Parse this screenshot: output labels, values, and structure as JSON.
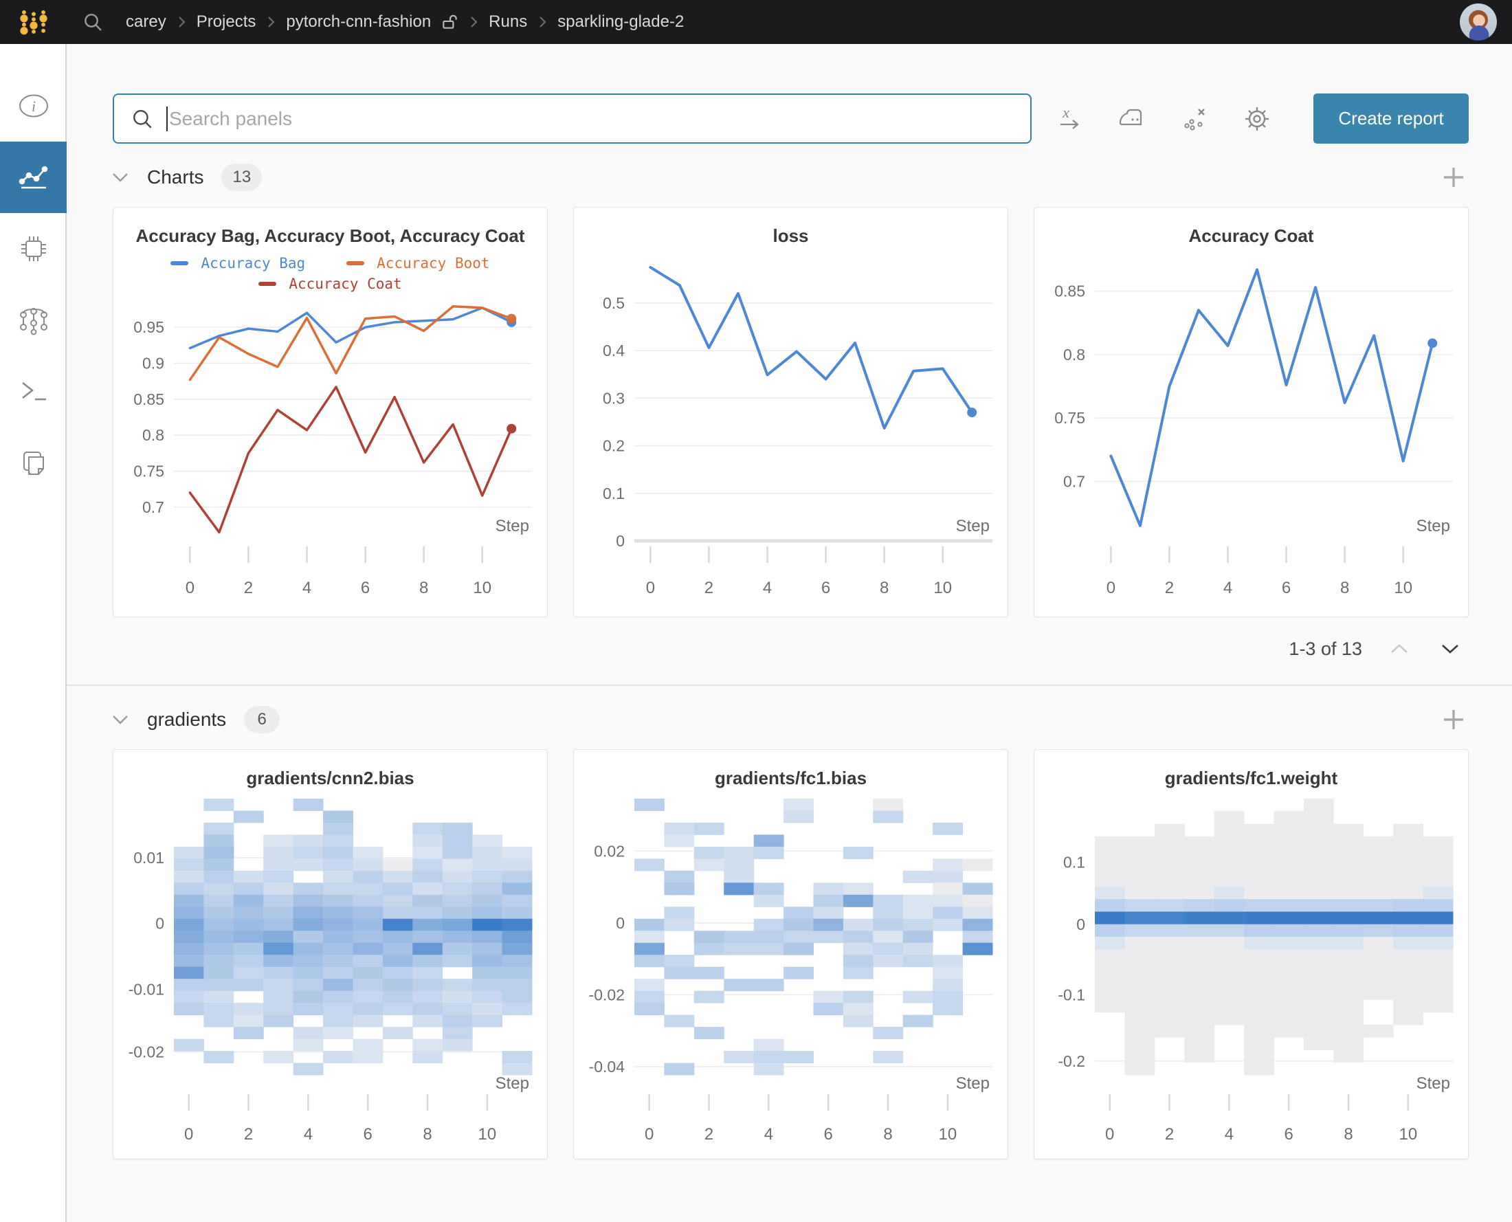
{
  "topbar": {
    "breadcrumb": [
      "carey",
      "Projects",
      "pytorch-cnn-fashion",
      "Runs",
      "sparkling-glade-2"
    ]
  },
  "search": {
    "placeholder": "Search panels"
  },
  "actions": {
    "create_report": "Create report"
  },
  "sections": {
    "charts": {
      "label": "Charts",
      "count": "13"
    },
    "gradients": {
      "label": "gradients",
      "count": "6"
    }
  },
  "pagination": {
    "label": "1-3 of 13"
  },
  "palette": {
    "blue": "#4f87d7",
    "orange": "#d9703a",
    "red": "#ad4239",
    "active_nav": "#3578a8",
    "button": "#3a85ad",
    "logo_gold": "#f5b83d"
  },
  "chart_data": [
    {
      "kind": "line",
      "type": "line",
      "title": "Accuracy Bag, Accuracy Boot, Accuracy Coat",
      "x_label": "Step",
      "x_ticks": [
        0,
        2,
        4,
        6,
        8,
        10
      ],
      "x_domain": [
        -0.55,
        11.7
      ],
      "y_domain": [
        0.653,
        0.9855
      ],
      "y_ticks": [
        {
          "v": 0.95,
          "l": "0.95"
        },
        {
          "v": 0.9,
          "l": "0.9"
        },
        {
          "v": 0.85,
          "l": "0.85"
        },
        {
          "v": 0.8,
          "l": "0.8"
        },
        {
          "v": 0.75,
          "l": "0.75"
        },
        {
          "v": 0.7,
          "l": "0.7"
        }
      ],
      "legend_rows": [
        [
          0,
          1
        ],
        [
          2
        ]
      ],
      "series": [
        {
          "name": "Accuracy Bag",
          "color": "#4f87d7",
          "width": 3.5,
          "end_dot": true,
          "values": [
            0.921,
            0.938,
            0.948,
            0.944,
            0.97,
            0.929,
            0.95,
            0.957,
            0.959,
            0.961,
            0.977,
            0.957
          ]
        },
        {
          "name": "Accuracy Boot",
          "color": "#d9703a",
          "width": 3.5,
          "end_dot": true,
          "values": [
            0.877,
            0.936,
            0.913,
            0.895,
            0.963,
            0.886,
            0.962,
            0.965,
            0.945,
            0.979,
            0.977,
            0.962
          ]
        },
        {
          "name": "Accuracy Coat",
          "color": "#ad4239",
          "width": 3.5,
          "end_dot": true,
          "values": [
            0.72,
            0.665,
            0.775,
            0.835,
            0.807,
            0.867,
            0.776,
            0.853,
            0.762,
            0.815,
            0.716,
            0.809
          ]
        }
      ]
    },
    {
      "kind": "line",
      "type": "line",
      "title": "loss",
      "x_label": "Step",
      "x_ticks": [
        0,
        2,
        4,
        6,
        8,
        10
      ],
      "x_domain": [
        -0.55,
        11.7
      ],
      "y_domain": [
        0,
        0.598
      ],
      "zero_axis": true,
      "y_ticks": [
        {
          "v": 0.5,
          "l": "0.5"
        },
        {
          "v": 0.4,
          "l": "0.4"
        },
        {
          "v": 0.3,
          "l": "0.3"
        },
        {
          "v": 0.2,
          "l": "0.2"
        },
        {
          "v": 0.1,
          "l": "0.1"
        },
        {
          "v": 0,
          "l": "0"
        }
      ],
      "series": [
        {
          "name": "loss",
          "color": "#4f87d7",
          "width": 4,
          "end_dot": true,
          "values": [
            0.575,
            0.537,
            0.406,
            0.52,
            0.349,
            0.398,
            0.34,
            0.416,
            0.237,
            0.357,
            0.362,
            0.27
          ]
        }
      ]
    },
    {
      "kind": "line",
      "type": "line",
      "title": "Accuracy Coat",
      "x_label": "Step",
      "x_ticks": [
        0,
        2,
        4,
        6,
        8,
        10
      ],
      "x_domain": [
        -0.55,
        11.7
      ],
      "y_domain": [
        0.653,
        0.8775
      ],
      "y_ticks": [
        {
          "v": 0.85,
          "l": "0.85"
        },
        {
          "v": 0.8,
          "l": "0.8"
        },
        {
          "v": 0.75,
          "l": "0.75"
        },
        {
          "v": 0.7,
          "l": "0.7"
        }
      ],
      "series": [
        {
          "name": "Accuracy Coat",
          "color": "#4f87d7",
          "width": 4,
          "end_dot": true,
          "values": [
            0.72,
            0.665,
            0.775,
            0.835,
            0.807,
            0.867,
            0.776,
            0.853,
            0.762,
            0.815,
            0.716,
            0.809
          ]
        }
      ]
    },
    {
      "kind": "heatmap",
      "type": "heatmap",
      "title": "gradients/cnn2.bias",
      "x_label": "Step",
      "x_ticks": [
        0,
        2,
        4,
        6,
        8,
        10
      ],
      "y_tick_fracs": [
        {
          "l": "0.01",
          "f": 0.214
        },
        {
          "l": "0",
          "f": 0.452
        },
        {
          "l": "-0.01",
          "f": 0.69
        },
        {
          "l": "-0.02",
          "f": 0.917
        }
      ],
      "rows": [
        [
          0,
          0.25,
          0,
          0,
          0.3,
          0,
          0,
          0,
          0,
          0,
          0,
          0
        ],
        [
          0,
          0,
          0.3,
          0,
          0,
          0.35,
          0,
          0,
          0,
          0,
          0,
          0
        ],
        [
          0,
          0.25,
          0,
          0,
          0,
          0.3,
          0,
          0,
          0.25,
          0.3,
          0,
          0
        ],
        [
          0,
          0.35,
          0,
          0.15,
          0.2,
          0.25,
          0,
          0,
          0.2,
          0.3,
          0.15,
          0
        ],
        [
          0.2,
          0.4,
          0,
          0.2,
          0.25,
          0.3,
          0.15,
          0,
          0.15,
          0.3,
          0.2,
          0.15
        ],
        [
          0.25,
          0.35,
          0,
          0.2,
          0.2,
          0.25,
          0.2,
          0.1,
          0.25,
          0.15,
          0.2,
          0.2
        ],
        [
          0.2,
          0.3,
          0.2,
          0.25,
          0,
          0.2,
          0.3,
          0.2,
          0.3,
          0.2,
          0.25,
          0.3
        ],
        [
          0.3,
          0.25,
          0.3,
          0.2,
          0.3,
          0.25,
          0.25,
          0.3,
          0.2,
          0.25,
          0.3,
          0.45
        ],
        [
          0.45,
          0.3,
          0.45,
          0.3,
          0.4,
          0.35,
          0.3,
          0.25,
          0.35,
          0.3,
          0.35,
          0.3
        ],
        [
          0.5,
          0.35,
          0.4,
          0.35,
          0.5,
          0.45,
          0.4,
          0.3,
          0.3,
          0.35,
          0.4,
          0.35
        ],
        [
          0.6,
          0.4,
          0.45,
          0.4,
          0.55,
          0.5,
          0.45,
          0.85,
          0.55,
          0.6,
          0.9,
          0.85
        ],
        [
          0.55,
          0.45,
          0.5,
          0.55,
          0.35,
          0.45,
          0.4,
          0.45,
          0.4,
          0.45,
          0.5,
          0.65
        ],
        [
          0.5,
          0.4,
          0.35,
          0.7,
          0.45,
          0.4,
          0.5,
          0.4,
          0.7,
          0.35,
          0.4,
          0.6
        ],
        [
          0.45,
          0.35,
          0.3,
          0.45,
          0.4,
          0.35,
          0.3,
          0.45,
          0.35,
          0.3,
          0.45,
          0.4
        ],
        [
          0.65,
          0.35,
          0.25,
          0.3,
          0.35,
          0.3,
          0.35,
          0.3,
          0.25,
          0,
          0.35,
          0.35
        ],
        [
          0.3,
          0.3,
          0.3,
          0.25,
          0.3,
          0.45,
          0.3,
          0.35,
          0.3,
          0.25,
          0.3,
          0.3
        ],
        [
          0.25,
          0.2,
          0,
          0.25,
          0.35,
          0.3,
          0.25,
          0.3,
          0.25,
          0.2,
          0.25,
          0.3
        ],
        [
          0.3,
          0.25,
          0.2,
          0.25,
          0.3,
          0.25,
          0.3,
          0.25,
          0.3,
          0.25,
          0.2,
          0.25
        ],
        [
          0,
          0.25,
          0.15,
          0.3,
          0,
          0.25,
          0.2,
          0,
          0.2,
          0.3,
          0.25,
          0
        ],
        [
          0,
          0,
          0.3,
          0,
          0.2,
          0.15,
          0,
          0.2,
          0,
          0.25,
          0,
          0
        ],
        [
          0.25,
          0,
          0,
          0,
          0.15,
          0,
          0.15,
          0,
          0.15,
          0.2,
          0,
          0
        ],
        [
          0,
          0.25,
          0,
          0.15,
          0,
          0.2,
          0.15,
          0,
          0.2,
          0,
          0,
          0.25
        ],
        [
          0,
          0,
          0,
          0,
          0.25,
          0,
          0,
          0,
          0,
          0,
          0,
          0.2
        ]
      ]
    },
    {
      "kind": "heatmap",
      "type": "heatmap",
      "title": "gradients/fc1.bias",
      "x_label": "Step",
      "x_ticks": [
        0,
        2,
        4,
        6,
        8,
        10
      ],
      "y_tick_fracs": [
        {
          "l": "0.02",
          "f": 0.19
        },
        {
          "l": "0",
          "f": 0.45
        },
        {
          "l": "-0.02",
          "f": 0.71
        },
        {
          "l": "-0.04",
          "f": 0.97
        }
      ],
      "rows": [
        [
          0.3,
          0,
          0,
          0,
          0,
          0.15,
          0,
          0,
          0.1,
          0,
          0,
          0
        ],
        [
          0,
          0,
          0,
          0,
          0,
          0.2,
          0,
          0,
          0.25,
          0,
          0,
          0
        ],
        [
          0,
          0.2,
          0.25,
          0,
          0,
          0,
          0,
          0,
          0,
          0,
          0.25,
          0
        ],
        [
          0,
          0.15,
          0,
          0,
          0.5,
          0,
          0,
          0,
          0,
          0,
          0,
          0
        ],
        [
          0,
          0,
          0.25,
          0.2,
          0.25,
          0,
          0,
          0.25,
          0,
          0,
          0,
          0
        ],
        [
          0.25,
          0,
          0.15,
          0.2,
          0,
          0,
          0,
          0,
          0,
          0,
          0.15,
          0.1
        ],
        [
          0,
          0.3,
          0,
          0.2,
          0,
          0,
          0,
          0,
          0,
          0.2,
          0.2,
          0
        ],
        [
          0,
          0.35,
          0,
          0.7,
          0.3,
          0,
          0.2,
          0.15,
          0,
          0,
          0.1,
          0.35
        ],
        [
          0,
          0,
          0,
          0,
          0.2,
          0,
          0.3,
          0.6,
          0.25,
          0.15,
          0.15,
          0.1
        ],
        [
          0,
          0.25,
          0,
          0,
          0,
          0.3,
          0.2,
          0,
          0.25,
          0.15,
          0.3,
          0.15
        ],
        [
          0.35,
          0.2,
          0,
          0,
          0.25,
          0.35,
          0.5,
          0.2,
          0.3,
          0.25,
          0.2,
          0.5
        ],
        [
          0.15,
          0,
          0.35,
          0.3,
          0.3,
          0.25,
          0.25,
          0.3,
          0.15,
          0.35,
          0,
          0.25
        ],
        [
          0.6,
          0,
          0.3,
          0.25,
          0.25,
          0.35,
          0,
          0.2,
          0.25,
          0.2,
          0,
          0.75
        ],
        [
          0.3,
          0.25,
          0,
          0,
          0,
          0,
          0,
          0.3,
          0.2,
          0.25,
          0.2,
          0
        ],
        [
          0,
          0.3,
          0.3,
          0,
          0,
          0.3,
          0,
          0.25,
          0,
          0,
          0.15,
          0
        ],
        [
          0.15,
          0,
          0,
          0.3,
          0.3,
          0,
          0,
          0,
          0,
          0,
          0.2,
          0
        ],
        [
          0.25,
          0,
          0.25,
          0,
          0,
          0,
          0.15,
          0.25,
          0,
          0.2,
          0.25,
          0
        ],
        [
          0.3,
          0,
          0,
          0,
          0,
          0,
          0.3,
          0.15,
          0,
          0,
          0.25,
          0
        ],
        [
          0,
          0.25,
          0,
          0,
          0,
          0,
          0,
          0.2,
          0,
          0.3,
          0,
          0
        ],
        [
          0,
          0,
          0.3,
          0,
          0,
          0,
          0,
          0,
          0.25,
          0,
          0,
          0
        ],
        [
          0,
          0,
          0,
          0,
          0.15,
          0,
          0,
          0,
          0,
          0,
          0,
          0
        ],
        [
          0,
          0,
          0,
          0.2,
          0.25,
          0.25,
          0,
          0,
          0.2,
          0,
          0,
          0
        ],
        [
          0,
          0.3,
          0,
          0,
          0.2,
          0,
          0,
          0,
          0,
          0,
          0,
          0
        ]
      ]
    },
    {
      "kind": "heatmap",
      "type": "heatmap",
      "title": "gradients/fc1.weight",
      "x_label": "Step",
      "x_ticks": [
        0,
        2,
        4,
        6,
        8,
        10
      ],
      "y_tick_fracs": [
        {
          "l": "0.1",
          "f": 0.23
        },
        {
          "l": "0",
          "f": 0.455
        },
        {
          "l": "-0.1",
          "f": 0.71
        },
        {
          "l": "-0.2",
          "f": 0.95
        }
      ],
      "rows": [
        [
          0,
          0,
          0,
          0,
          0,
          0,
          0,
          0.08,
          0,
          0,
          0,
          0
        ],
        [
          0,
          0,
          0,
          0,
          0.08,
          0,
          0.08,
          0.08,
          0,
          0,
          0,
          0
        ],
        [
          0,
          0,
          0.08,
          0,
          0.08,
          0.08,
          0.08,
          0.08,
          0.08,
          0,
          0.08,
          0
        ],
        [
          0.08,
          0.08,
          0.08,
          0.08,
          0.08,
          0.08,
          0.08,
          0.08,
          0.08,
          0.08,
          0.08,
          0.08
        ],
        [
          0.08,
          0.08,
          0.08,
          0.08,
          0.08,
          0.08,
          0.08,
          0.08,
          0.08,
          0.08,
          0.08,
          0.08
        ],
        [
          0.1,
          0.08,
          0.08,
          0.08,
          0.1,
          0.08,
          0.08,
          0.08,
          0.08,
          0.08,
          0.08,
          0.1
        ],
        [
          0.12,
          0.1,
          0.1,
          0.1,
          0.12,
          0.1,
          0.1,
          0.1,
          0.1,
          0.1,
          0.1,
          0.12
        ],
        [
          0.15,
          0.12,
          0.12,
          0.12,
          0.15,
          0.12,
          0.12,
          0.12,
          0.12,
          0.12,
          0.12,
          0.15
        ],
        [
          0.3,
          0.25,
          0.25,
          0.28,
          0.3,
          0.28,
          0.28,
          0.28,
          0.28,
          0.28,
          0.3,
          0.3
        ],
        [
          0.9,
          0.85,
          0.85,
          0.88,
          0.88,
          1,
          1,
          0.95,
          1,
          0.95,
          1,
          1
        ],
        [
          0.3,
          0.25,
          0.25,
          0.25,
          0.25,
          0.3,
          0.3,
          0.3,
          0.3,
          0.28,
          0.3,
          0.3
        ],
        [
          0.15,
          0.12,
          0.12,
          0.12,
          0.12,
          0.15,
          0.15,
          0.15,
          0.15,
          0.12,
          0.15,
          0.15
        ],
        [
          0.1,
          0.1,
          0.1,
          0.1,
          0.1,
          0.1,
          0.1,
          0.1,
          0.1,
          0.1,
          0.1,
          0.1
        ],
        [
          0.08,
          0.08,
          0.08,
          0.08,
          0.08,
          0.08,
          0.08,
          0.08,
          0.08,
          0.08,
          0.08,
          0.08
        ],
        [
          0.08,
          0.08,
          0.08,
          0.08,
          0.08,
          0.08,
          0.08,
          0.08,
          0.08,
          0.08,
          0.08,
          0.08
        ],
        [
          0.08,
          0.08,
          0.08,
          0.08,
          0.08,
          0.08,
          0.08,
          0.08,
          0.08,
          0.08,
          0.08,
          0.08
        ],
        [
          0.08,
          0.08,
          0.08,
          0.08,
          0.08,
          0.08,
          0.08,
          0.08,
          0.08,
          0,
          0.08,
          0.08
        ],
        [
          0,
          0.08,
          0.08,
          0.08,
          0.08,
          0.08,
          0.08,
          0.08,
          0.08,
          0,
          0.08,
          0
        ],
        [
          0,
          0.08,
          0.08,
          0.08,
          0,
          0.08,
          0.08,
          0.08,
          0.08,
          0.08,
          0,
          0
        ],
        [
          0,
          0.08,
          0,
          0.08,
          0,
          0.08,
          0,
          0.08,
          0.08,
          0,
          0,
          0
        ],
        [
          0,
          0.08,
          0,
          0.08,
          0,
          0.08,
          0,
          0,
          0.08,
          0,
          0,
          0
        ],
        [
          0,
          0.08,
          0,
          0,
          0,
          0.08,
          0,
          0,
          0,
          0,
          0,
          0
        ]
      ]
    }
  ]
}
